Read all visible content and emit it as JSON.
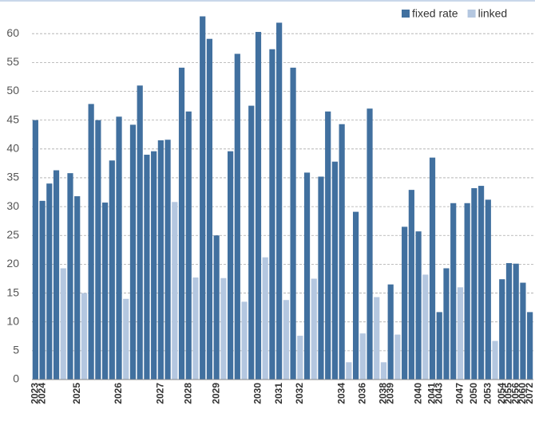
{
  "chart_data": {
    "type": "bar",
    "categories": [
      "2023",
      "2024",
      null,
      null,
      null,
      null,
      "2025",
      null,
      null,
      null,
      null,
      null,
      "2026",
      null,
      null,
      null,
      null,
      null,
      "2027",
      null,
      null,
      null,
      "2028",
      null,
      null,
      null,
      "2029",
      null,
      null,
      null,
      null,
      null,
      "2030",
      null,
      null,
      "2031",
      null,
      null,
      "2032",
      null,
      null,
      null,
      null,
      null,
      "2034",
      null,
      null,
      "2036",
      null,
      null,
      "2038",
      "2039",
      null,
      null,
      null,
      "2040",
      null,
      "2041",
      "2043",
      null,
      null,
      "2047",
      null,
      "2050",
      null,
      "2053",
      null,
      "2054",
      "2055",
      "2056",
      "2060",
      "2072"
    ],
    "series": [
      {
        "name": "fixed rate",
        "color": "#41709f",
        "values": [
          45,
          31,
          34,
          36.3,
          null,
          35.8,
          31.8,
          null,
          47.8,
          45,
          30.7,
          38,
          45.6,
          null,
          44.2,
          51,
          39,
          39.6,
          41.5,
          41.6,
          null,
          54.1,
          46.5,
          null,
          63,
          59.1,
          25,
          null,
          39.6,
          56.5,
          null,
          47.5,
          60.3,
          null,
          57.3,
          61.9,
          null,
          54.1,
          null,
          35.9,
          null,
          35.2,
          46.5,
          37.8,
          44.3,
          null,
          29.1,
          null,
          47,
          null,
          null,
          16.5,
          null,
          26.5,
          32.9,
          25.7,
          null,
          38.5,
          11.7,
          19.3,
          30.6,
          null,
          30.6,
          33.2,
          33.6,
          31.2,
          null,
          17.4,
          20.2,
          20.1,
          16.8,
          11.7
        ]
      },
      {
        "name": "linked",
        "color": "#b4c7e0",
        "values": [
          null,
          null,
          null,
          null,
          19.3,
          null,
          null,
          15,
          null,
          null,
          null,
          null,
          null,
          14,
          null,
          null,
          null,
          null,
          null,
          null,
          30.8,
          null,
          null,
          17.7,
          null,
          null,
          null,
          17.6,
          null,
          null,
          13.5,
          null,
          null,
          21.2,
          null,
          null,
          13.8,
          null,
          7.6,
          null,
          17.5,
          null,
          null,
          null,
          null,
          3,
          null,
          8,
          null,
          14.3,
          3,
          null,
          7.8,
          null,
          null,
          null,
          18.2,
          null,
          null,
          null,
          null,
          16,
          null,
          null,
          null,
          null,
          6.7,
          null,
          null,
          null,
          null,
          null
        ]
      }
    ],
    "ylim": [
      0,
      65
    ],
    "yticks": [
      0,
      5,
      10,
      15,
      20,
      25,
      30,
      35,
      40,
      45,
      50,
      55,
      60
    ],
    "grid": true
  }
}
